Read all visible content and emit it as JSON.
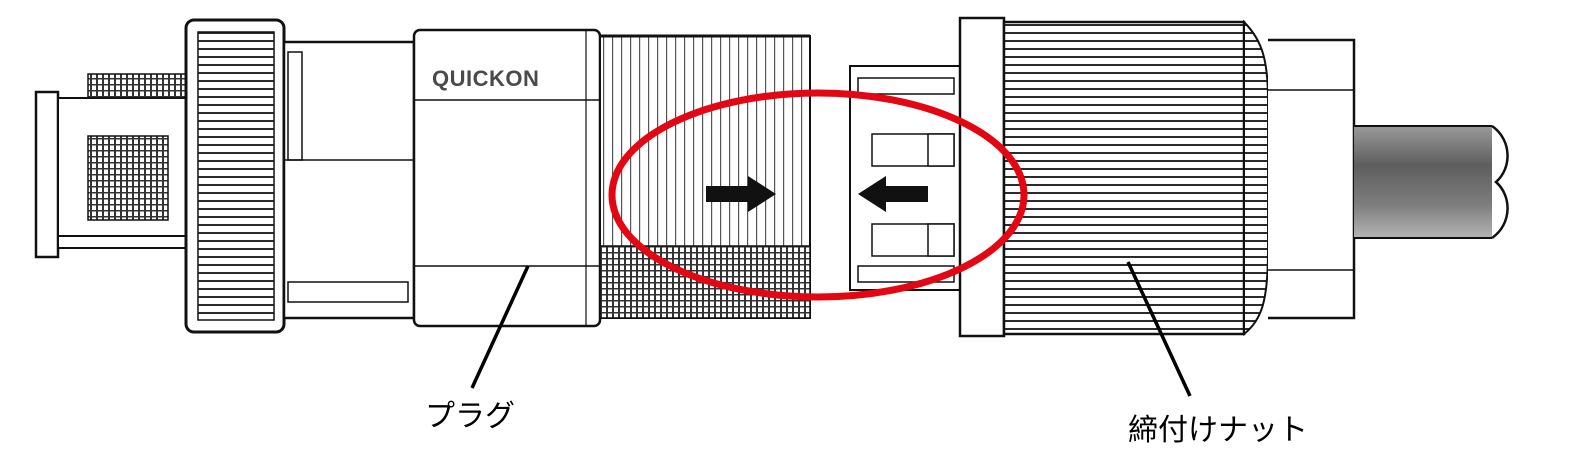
{
  "brand_text": "QUICKON",
  "labels": {
    "plug": "プラグ",
    "tightening_nut": "締付けナット"
  },
  "colors": {
    "outline": "#111111",
    "highlight_ring": "#e30613",
    "arrow": "#111111",
    "cable": "#6e6e6e"
  }
}
